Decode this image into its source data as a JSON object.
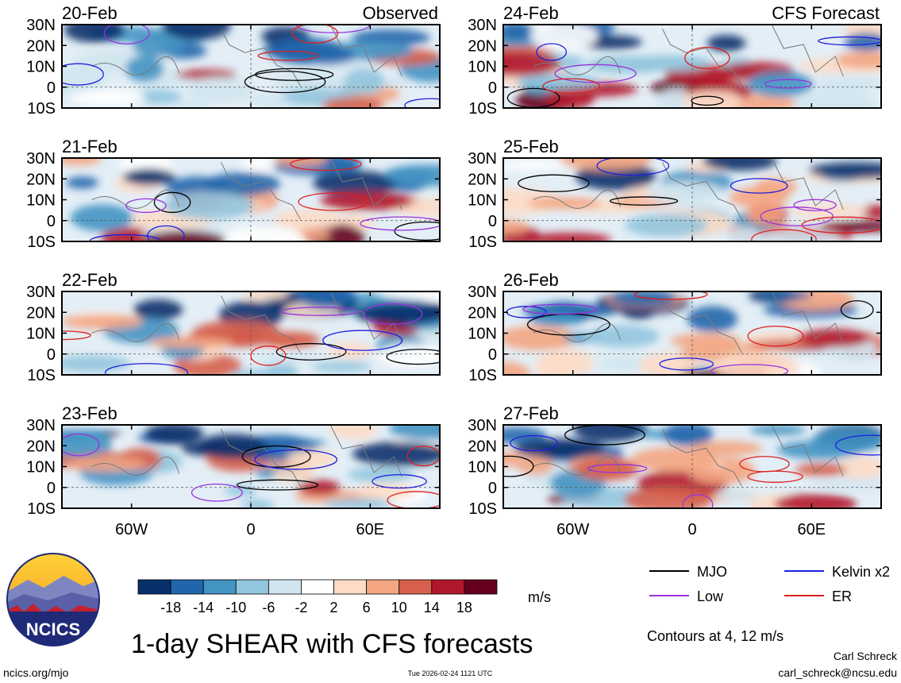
{
  "chart_data": {
    "type": "heatmap",
    "title": "1-day SHEAR with CFS forecasts",
    "columns": [
      {
        "header": "Observed",
        "dates": [
          "20-Feb",
          "21-Feb",
          "22-Feb",
          "23-Feb"
        ]
      },
      {
        "header": "CFS Forecast",
        "dates": [
          "24-Feb",
          "25-Feb",
          "26-Feb",
          "27-Feb"
        ]
      }
    ],
    "lat_ticks": [
      "30N",
      "20N",
      "10N",
      "0",
      "10S"
    ],
    "lat_values": [
      30,
      20,
      10,
      0,
      -10
    ],
    "lon_ticks": [
      "60W",
      "0",
      "60E"
    ],
    "lon_values": [
      -60,
      0,
      60
    ],
    "lon_range": [
      -95,
      95
    ],
    "lat_range": [
      -10,
      30
    ],
    "colorbar": {
      "labels": [
        "-18",
        "-14",
        "-10",
        "-6",
        "-2",
        "2",
        "6",
        "10",
        "14",
        "18"
      ],
      "colors": [
        "#08306b",
        "#2166ac",
        "#4393c3",
        "#92c5de",
        "#d1e5f0",
        "#ffffff",
        "#fddbc7",
        "#f4a582",
        "#d6604d",
        "#b2182b",
        "#67001f"
      ],
      "units": "m/s"
    },
    "contours_note": "Contours at 4, 12 m/s",
    "legend": [
      {
        "label": "MJO",
        "color": "#000000"
      },
      {
        "label": "Kelvin x2",
        "color": "#1f1fdd"
      },
      {
        "label": "Low",
        "color": "#9933dd"
      },
      {
        "label": "ER",
        "color": "#dd2020"
      }
    ]
  },
  "logo": {
    "text": "NCICS"
  },
  "footer": {
    "url": "ncics.org/mjo",
    "timestamp": "Tue 2026-02-24 1121 UTC",
    "author": "Carl Schreck",
    "email": "carl_schreck@ncsu.edu"
  }
}
